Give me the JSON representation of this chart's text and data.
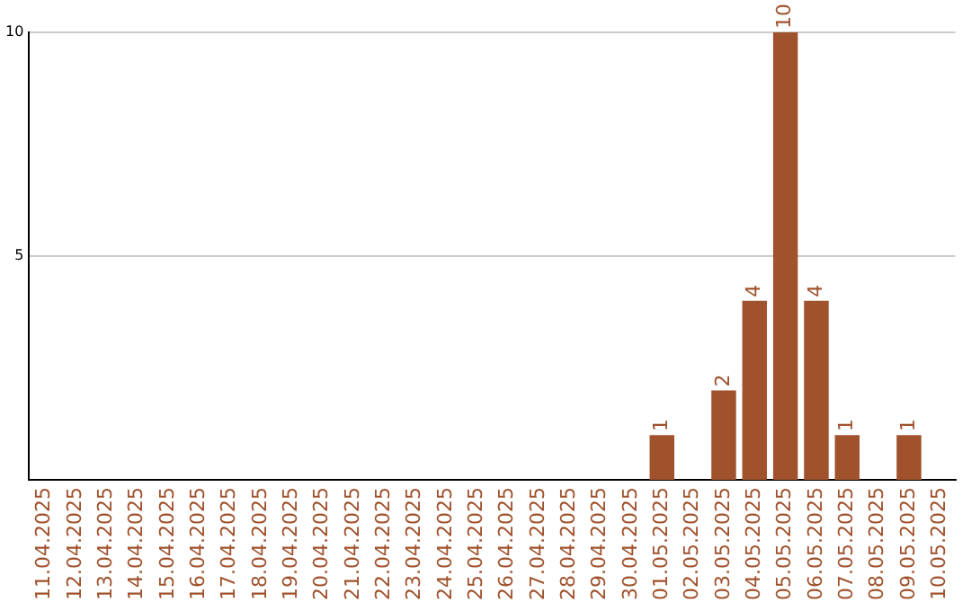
{
  "chart_data": {
    "type": "bar",
    "categories": [
      "11.04.2025",
      "12.04.2025",
      "13.04.2025",
      "14.04.2025",
      "15.04.2025",
      "16.04.2025",
      "17.04.2025",
      "18.04.2025",
      "19.04.2025",
      "20.04.2025",
      "21.04.2025",
      "22.04.2025",
      "23.04.2025",
      "24.04.2025",
      "25.04.2025",
      "26.04.2025",
      "27.04.2025",
      "28.04.2025",
      "29.04.2025",
      "30.04.2025",
      "01.05.2025",
      "02.05.2025",
      "03.05.2025",
      "04.05.2025",
      "05.05.2025",
      "06.05.2025",
      "07.05.2025",
      "08.05.2025",
      "09.05.2025",
      "10.05.2025"
    ],
    "values": [
      0,
      0,
      0,
      0,
      0,
      0,
      0,
      0,
      0,
      0,
      0,
      0,
      0,
      0,
      0,
      0,
      0,
      0,
      0,
      0,
      1,
      0,
      2,
      4,
      10,
      4,
      1,
      0,
      1,
      0
    ],
    "value_labels": [
      null,
      null,
      null,
      null,
      null,
      null,
      null,
      null,
      null,
      null,
      null,
      null,
      null,
      null,
      null,
      null,
      null,
      null,
      null,
      null,
      "1",
      null,
      "2",
      "4",
      "10",
      "4",
      "1",
      null,
      "1",
      null
    ],
    "color": "#a0522d",
    "ylim": [
      0,
      10
    ],
    "yticks": [
      5,
      10
    ],
    "grid": "y",
    "legend": false
  }
}
